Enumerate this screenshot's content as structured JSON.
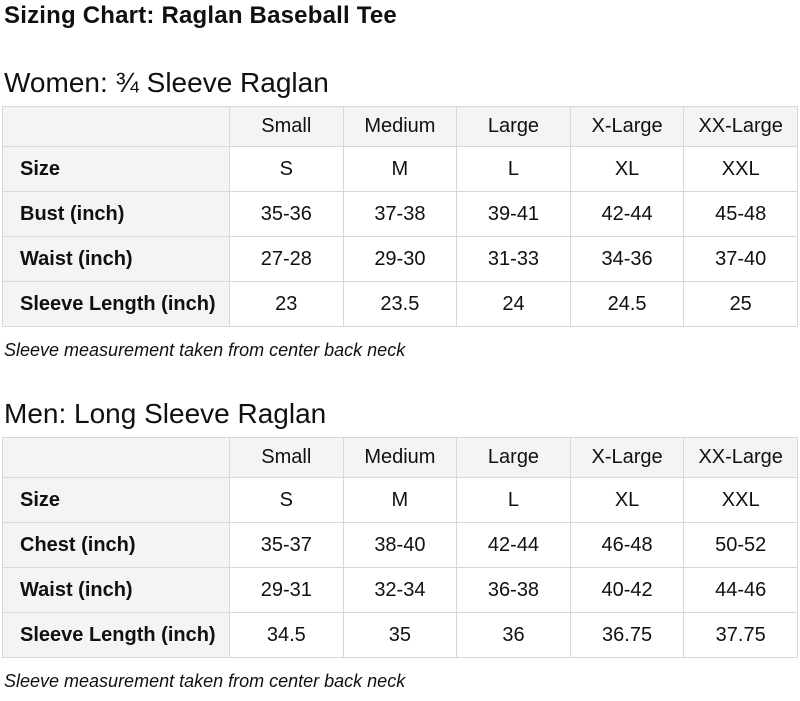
{
  "page": {
    "title": "Sizing Chart: Raglan Baseball Tee"
  },
  "colors": {
    "text": "#0f1111",
    "table_header_bg": "#f4f4f4",
    "table_border": "#d5d9d9",
    "cell_bg": "#ffffff"
  },
  "sections": [
    {
      "heading": "Women: ¾ Sleeve Raglan",
      "table": {
        "column_headers": [
          "",
          "Small",
          "Medium",
          "Large",
          "X-Large",
          "XX-Large"
        ],
        "rows": [
          {
            "label": "Size",
            "values": [
              "S",
              "M",
              "L",
              "XL",
              "XXL"
            ]
          },
          {
            "label": "Bust (inch)",
            "values": [
              "35-36",
              "37-38",
              "39-41",
              "42-44",
              "45-48"
            ]
          },
          {
            "label": "Waist (inch)",
            "values": [
              "27-28",
              "29-30",
              "31-33",
              "34-36",
              "37-40"
            ]
          },
          {
            "label": "Sleeve Length (inch)",
            "values": [
              "23",
              "23.5",
              "24",
              "24.5",
              "25"
            ]
          }
        ]
      },
      "note": "Sleeve measurement taken from center back neck"
    },
    {
      "heading": "Men: Long Sleeve Raglan",
      "table": {
        "column_headers": [
          "",
          "Small",
          "Medium",
          "Large",
          "X-Large",
          "XX-Large"
        ],
        "rows": [
          {
            "label": "Size",
            "values": [
              "S",
              "M",
              "L",
              "XL",
              "XXL"
            ]
          },
          {
            "label": "Chest (inch)",
            "values": [
              "35-37",
              "38-40",
              "42-44",
              "46-48",
              "50-52"
            ]
          },
          {
            "label": "Waist (inch)",
            "values": [
              "29-31",
              "32-34",
              "36-38",
              "40-42",
              "44-46"
            ]
          },
          {
            "label": "Sleeve Length (inch)",
            "values": [
              "34.5",
              "35",
              "36",
              "36.75",
              "37.75"
            ]
          }
        ]
      },
      "note": "Sleeve measurement taken from center back neck"
    }
  ]
}
